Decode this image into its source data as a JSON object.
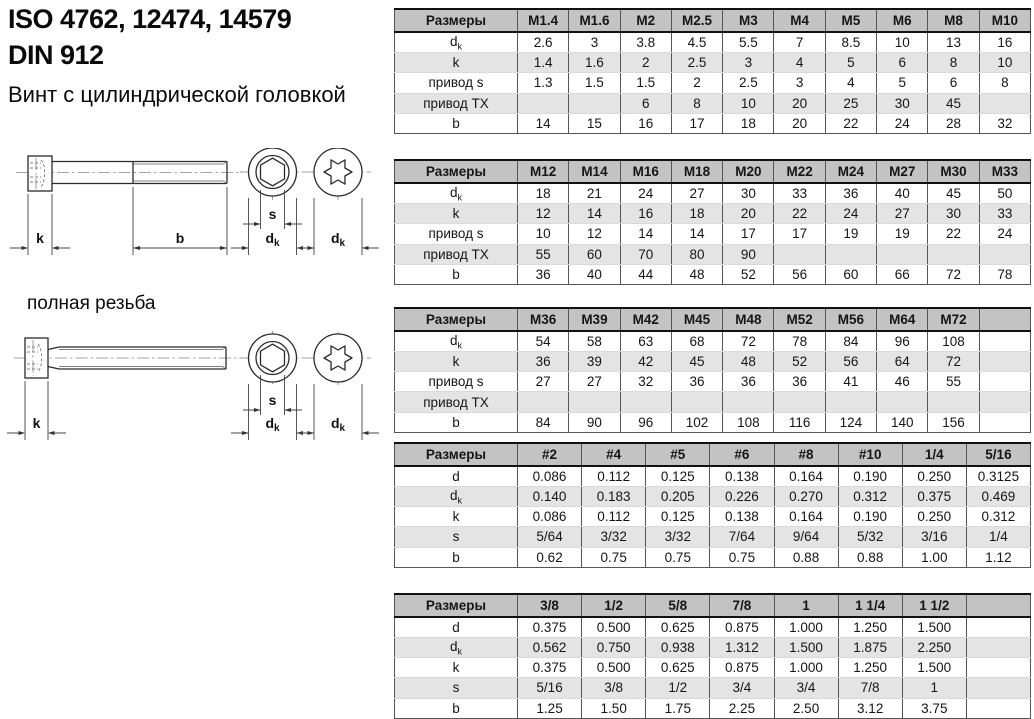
{
  "page": {
    "title_line1": "ISO 4762, 12474, 14579",
    "title_line2": "DIN 912",
    "subtitle": "Винт с цилиндрической головкой",
    "full_thread_label": "полная резьба"
  },
  "drawing_labels": {
    "k": "k",
    "b": "b",
    "s": "s",
    "d": "d",
    "sub_k": "k"
  },
  "colors": {
    "header_bg": "#c3c3c3",
    "row_shaded": "#e4e4e4",
    "row_plain": "#ffffff",
    "grid_line": "#555555",
    "heavy_line": "#111111"
  },
  "tables": [
    {
      "header_label": "Размеры",
      "columns": [
        "M1.4",
        "M1.6",
        "M2",
        "M2.5",
        "M3",
        "M4",
        "M5",
        "M6",
        "M8",
        "M10"
      ],
      "rows": [
        {
          "label": "d_k",
          "values": [
            "2.6",
            "3",
            "3.8",
            "4.5",
            "5.5",
            "7",
            "8.5",
            "10",
            "13",
            "16"
          ]
        },
        {
          "label": "k",
          "values": [
            "1.4",
            "1.6",
            "2",
            "2.5",
            "3",
            "4",
            "5",
            "6",
            "8",
            "10"
          ]
        },
        {
          "label": "привод s",
          "values": [
            "1.3",
            "1.5",
            "1.5",
            "2",
            "2.5",
            "3",
            "4",
            "5",
            "6",
            "8"
          ]
        },
        {
          "label": "привод TX",
          "values": [
            "",
            "",
            "6",
            "8",
            "10",
            "20",
            "25",
            "30",
            "45",
            ""
          ]
        },
        {
          "label": "b",
          "values": [
            "14",
            "15",
            "16",
            "17",
            "18",
            "20",
            "22",
            "24",
            "28",
            "32"
          ]
        }
      ]
    },
    {
      "header_label": "Размеры",
      "columns": [
        "M12",
        "M14",
        "M16",
        "M18",
        "M20",
        "M22",
        "M24",
        "M27",
        "M30",
        "M33"
      ],
      "rows": [
        {
          "label": "d_k",
          "values": [
            "18",
            "21",
            "24",
            "27",
            "30",
            "33",
            "36",
            "40",
            "45",
            "50"
          ]
        },
        {
          "label": "k",
          "values": [
            "12",
            "14",
            "16",
            "18",
            "20",
            "22",
            "24",
            "27",
            "30",
            "33"
          ]
        },
        {
          "label": "привод s",
          "values": [
            "10",
            "12",
            "14",
            "14",
            "17",
            "17",
            "19",
            "19",
            "22",
            "24"
          ]
        },
        {
          "label": "привод TX",
          "values": [
            "55",
            "60",
            "70",
            "80",
            "90",
            "",
            "",
            "",
            "",
            ""
          ]
        },
        {
          "label": "b",
          "values": [
            "36",
            "40",
            "44",
            "48",
            "52",
            "56",
            "60",
            "66",
            "72",
            "78"
          ]
        }
      ]
    },
    {
      "header_label": "Размеры",
      "columns": [
        "M36",
        "M39",
        "M42",
        "M45",
        "M48",
        "M52",
        "M56",
        "M64",
        "M72",
        ""
      ],
      "rows": [
        {
          "label": "d_k",
          "values": [
            "54",
            "58",
            "63",
            "68",
            "72",
            "78",
            "84",
            "96",
            "108",
            ""
          ]
        },
        {
          "label": "k",
          "values": [
            "36",
            "39",
            "42",
            "45",
            "48",
            "52",
            "56",
            "64",
            "72",
            ""
          ]
        },
        {
          "label": "привод s",
          "values": [
            "27",
            "27",
            "32",
            "36",
            "36",
            "36",
            "41",
            "46",
            "55",
            ""
          ]
        },
        {
          "label": "привод TX",
          "values": [
            "",
            "",
            "",
            "",
            "",
            "",
            "",
            "",
            "",
            ""
          ]
        },
        {
          "label": "b",
          "values": [
            "84",
            "90",
            "96",
            "102",
            "108",
            "116",
            "124",
            "140",
            "156",
            ""
          ]
        }
      ]
    },
    {
      "header_label": "Размеры",
      "columns": [
        "#2",
        "#4",
        "#5",
        "#6",
        "#8",
        "#10",
        "1/4",
        "5/16"
      ],
      "rows": [
        {
          "label": "d",
          "values": [
            "0.086",
            "0.112",
            "0.125",
            "0.138",
            "0.164",
            "0.190",
            "0.250",
            "0.3125"
          ]
        },
        {
          "label": "d_k",
          "values": [
            "0.140",
            "0.183",
            "0.205",
            "0.226",
            "0.270",
            "0.312",
            "0.375",
            "0.469"
          ]
        },
        {
          "label": "k",
          "values": [
            "0.086",
            "0.112",
            "0.125",
            "0.138",
            "0.164",
            "0.190",
            "0.250",
            "0.312"
          ]
        },
        {
          "label": "s",
          "values": [
            "5/64",
            "3/32",
            "3/32",
            "7/64",
            "9/64",
            "5/32",
            "3/16",
            "1/4"
          ]
        },
        {
          "label": "b",
          "values": [
            "0.62",
            "0.75",
            "0.75",
            "0.75",
            "0.88",
            "0.88",
            "1.00",
            "1.12"
          ]
        }
      ]
    },
    {
      "header_label": "Размеры",
      "columns": [
        "3/8",
        "1/2",
        "5/8",
        "7/8",
        "1",
        "1 1/4",
        "1 1/2",
        ""
      ],
      "rows": [
        {
          "label": "d",
          "values": [
            "0.375",
            "0.500",
            "0.625",
            "0.875",
            "1.000",
            "1.250",
            "1.500",
            ""
          ]
        },
        {
          "label": "d_k",
          "values": [
            "0.562",
            "0.750",
            "0.938",
            "1.312",
            "1.500",
            "1.875",
            "2.250",
            ""
          ]
        },
        {
          "label": "k",
          "values": [
            "0.375",
            "0.500",
            "0.625",
            "0.875",
            "1.000",
            "1.250",
            "1.500",
            ""
          ]
        },
        {
          "label": "s",
          "values": [
            "5/16",
            "3/8",
            "1/2",
            "3/4",
            "3/4",
            "7/8",
            "1",
            ""
          ]
        },
        {
          "label": "b",
          "values": [
            "1.25",
            "1.50",
            "1.75",
            "2.25",
            "2.50",
            "3.12",
            "3.75",
            ""
          ]
        }
      ]
    }
  ]
}
